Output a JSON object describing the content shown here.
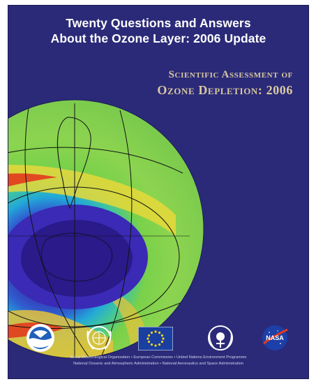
{
  "cover": {
    "title_line1": "Twenty Questions and Answers",
    "title_line2": "About the Ozone Layer: 2006 Update",
    "subtitle_line1": "Scientific Assessment of",
    "subtitle_line2": "Ozone Depletion: 2006"
  },
  "logos": [
    {
      "name": "noaa-logo"
    },
    {
      "name": "wmo-logo"
    },
    {
      "name": "european-commission-logo"
    },
    {
      "name": "unep-logo"
    },
    {
      "name": "nasa-logo",
      "text": "NASA"
    }
  ],
  "footer": {
    "line1": "World Meteorological Organization • European Commission • United Nations Environment Programme",
    "line2": "National Oceanic and Atmospheric Administration • National Aeronautics and Space Administration"
  },
  "colors": {
    "background": "#2b2a78",
    "title": "#ffffff",
    "subtitle": "#d9c9a0",
    "ozone_hole": "#4b2fa5"
  }
}
